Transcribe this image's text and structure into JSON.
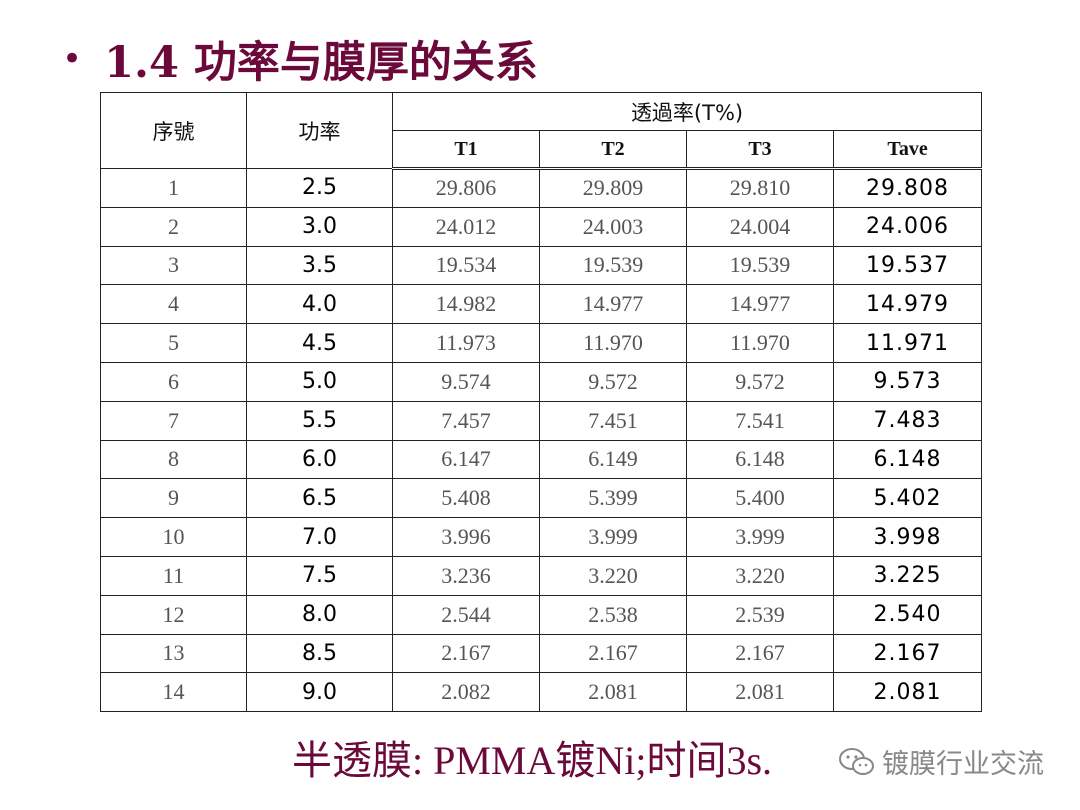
{
  "header": {
    "bullet": "•",
    "title": "1.4 功率与膜厚的关系"
  },
  "table": {
    "col_index": "序號",
    "col_power": "功率",
    "col_trans_group": "透過率(T%)",
    "col_t1": "T1",
    "col_t2": "T2",
    "col_t3": "T3",
    "col_tave": "Tave",
    "rows": [
      {
        "idx": "1",
        "power": "2.5",
        "t1": "29.806",
        "t2": "29.809",
        "t3": "29.810",
        "tave": "29.808"
      },
      {
        "idx": "2",
        "power": "3.0",
        "t1": "24.012",
        "t2": "24.003",
        "t3": "24.004",
        "tave": "24.006"
      },
      {
        "idx": "3",
        "power": "3.5",
        "t1": "19.534",
        "t2": "19.539",
        "t3": "19.539",
        "tave": "19.537"
      },
      {
        "idx": "4",
        "power": "4.0",
        "t1": "14.982",
        "t2": "14.977",
        "t3": "14.977",
        "tave": "14.979"
      },
      {
        "idx": "5",
        "power": "4.5",
        "t1": "11.973",
        "t2": "11.970",
        "t3": "11.970",
        "tave": "11.971"
      },
      {
        "idx": "6",
        "power": "5.0",
        "t1": "9.574",
        "t2": "9.572",
        "t3": "9.572",
        "tave": "9.573"
      },
      {
        "idx": "7",
        "power": "5.5",
        "t1": "7.457",
        "t2": "7.451",
        "t3": "7.541",
        "tave": "7.483"
      },
      {
        "idx": "8",
        "power": "6.0",
        "t1": "6.147",
        "t2": "6.149",
        "t3": "6.148",
        "tave": "6.148"
      },
      {
        "idx": "9",
        "power": "6.5",
        "t1": "5.408",
        "t2": "5.399",
        "t3": "5.400",
        "tave": "5.402"
      },
      {
        "idx": "10",
        "power": "7.0",
        "t1": "3.996",
        "t2": "3.999",
        "t3": "3.999",
        "tave": "3.998"
      },
      {
        "idx": "11",
        "power": "7.5",
        "t1": "3.236",
        "t2": "3.220",
        "t3": "3.220",
        "tave": "3.225"
      },
      {
        "idx": "12",
        "power": "8.0",
        "t1": "2.544",
        "t2": "2.538",
        "t3": "2.539",
        "tave": "2.540"
      },
      {
        "idx": "13",
        "power": "8.5",
        "t1": "2.167",
        "t2": "2.167",
        "t3": "2.167",
        "tave": "2.167"
      },
      {
        "idx": "14",
        "power": "9.0",
        "t1": "2.082",
        "t2": "2.081",
        "t3": "2.081",
        "tave": "2.081"
      }
    ]
  },
  "footer": {
    "caption": "半透膜: PMMA镀Ni;时间3s."
  },
  "watermark": {
    "icon": "wechat-icon",
    "text": "镀膜行业交流"
  },
  "colors": {
    "title": "#6b0a3a",
    "watermark": "#888888"
  }
}
